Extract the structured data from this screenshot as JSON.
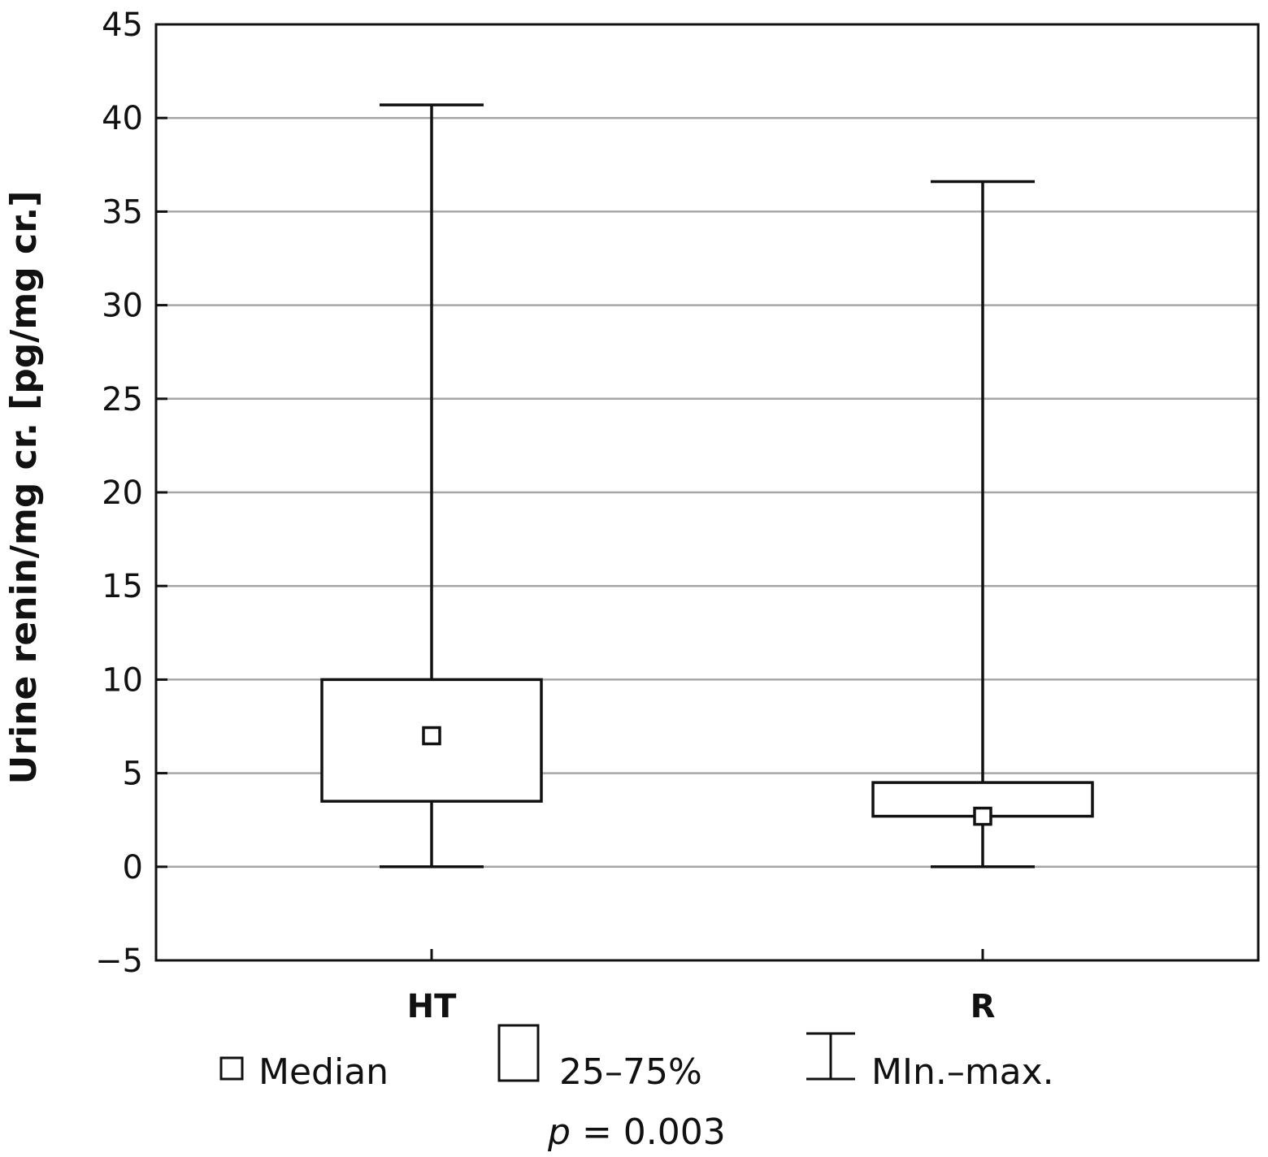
{
  "chart_data": {
    "type": "boxplot",
    "ylabel": "Urine renin/mg cr. [pg/mg cr.]",
    "ylim": [
      -5,
      45
    ],
    "yticks": [
      -5,
      0,
      5,
      10,
      15,
      20,
      25,
      30,
      35,
      40,
      45
    ],
    "ytick_labels": [
      "−5",
      "0",
      "5",
      "10",
      "15",
      "20",
      "25",
      "30",
      "35",
      "40",
      "45"
    ],
    "grid": true,
    "categories": [
      "HT",
      "R"
    ],
    "boxes": [
      {
        "category": "HT",
        "min": 0,
        "q1": 3.5,
        "median": 7,
        "q3": 10,
        "max": 40.7
      },
      {
        "category": "R",
        "min": 0,
        "q1": 2.7,
        "median": 2.7,
        "q3": 4.5,
        "max": 36.6
      }
    ],
    "legend": {
      "placement": "bottom",
      "median": "Median",
      "box": "25–75%",
      "whisker": "MIn.–max."
    },
    "annotation": {
      "p_label": "p",
      "p_value": "= 0.003"
    }
  }
}
